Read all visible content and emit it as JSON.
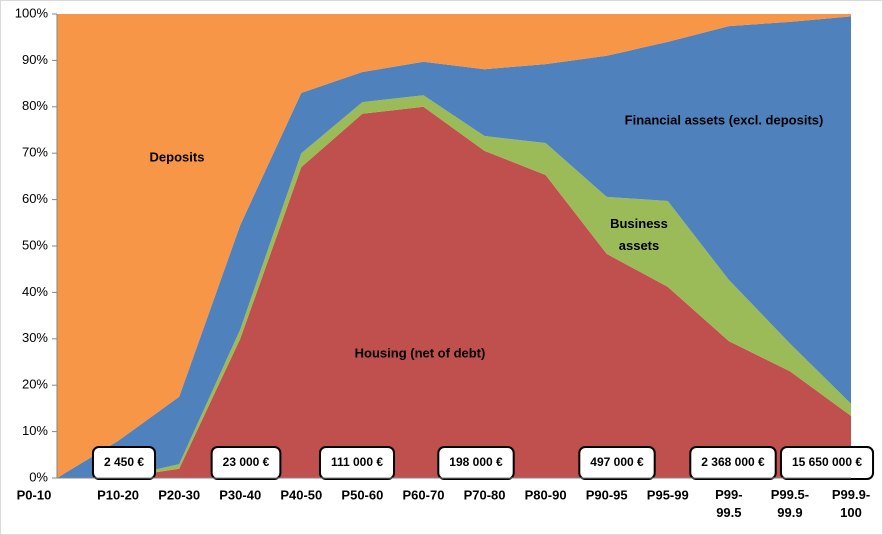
{
  "chart_data": {
    "type": "area",
    "categories": [
      "P0-10",
      "P10-20",
      "P20-30",
      "P30-40",
      "P40-50",
      "P50-60",
      "P60-70",
      "P70-80",
      "P80-90",
      "P90-95",
      "P95-99",
      "P99-99.5",
      "P99.5-99.9",
      "P99.9-100"
    ],
    "series": [
      {
        "name": "Housing (net of debt)",
        "color": "#c0504d",
        "values": [
          0,
          0,
          2,
          30,
          67,
          78.5,
          80,
          70.5,
          65.3,
          48.3,
          41.2,
          29.5,
          23,
          13.4
        ]
      },
      {
        "name": "Business assets",
        "color": "#9bbb59",
        "values": [
          0,
          0,
          1,
          2,
          3,
          2.5,
          2.5,
          3.2,
          6.9,
          12.3,
          18.5,
          13.2,
          6,
          2.6
        ]
      },
      {
        "name": "Financial assets  (excl. deposits)",
        "color": "#4f81bd",
        "values": [
          0,
          8,
          14.5,
          22.5,
          13,
          6.5,
          7.2,
          14.4,
          17,
          30.4,
          34.3,
          54.7,
          69.3,
          83.5
        ]
      },
      {
        "name": "Deposits",
        "color": "#f79646",
        "values": [
          100,
          92,
          82.5,
          45.5,
          17,
          12.5,
          10.3,
          11.9,
          10.8,
          9,
          6,
          2.6,
          1.7,
          0.5
        ]
      }
    ],
    "ylim": [
      0,
      100
    ],
    "yticks": [
      {
        "value": 0,
        "label": "0%"
      },
      {
        "value": 10,
        "label": "10%"
      },
      {
        "value": 20,
        "label": "20%"
      },
      {
        "value": 30,
        "label": "30%"
      },
      {
        "value": 40,
        "label": "40%"
      },
      {
        "value": 50,
        "label": "50%"
      },
      {
        "value": 60,
        "label": "60%"
      },
      {
        "value": 70,
        "label": "70%"
      },
      {
        "value": 80,
        "label": "80%"
      },
      {
        "value": 90,
        "label": "90%"
      },
      {
        "value": 100,
        "label": "100%"
      }
    ],
    "stacked": true,
    "annotations": [
      "2 450 €",
      "23 000 €",
      "111 000 €",
      "198 000 €",
      "497 000 €",
      "2 368 000 €",
      "15 650 000 €"
    ]
  }
}
